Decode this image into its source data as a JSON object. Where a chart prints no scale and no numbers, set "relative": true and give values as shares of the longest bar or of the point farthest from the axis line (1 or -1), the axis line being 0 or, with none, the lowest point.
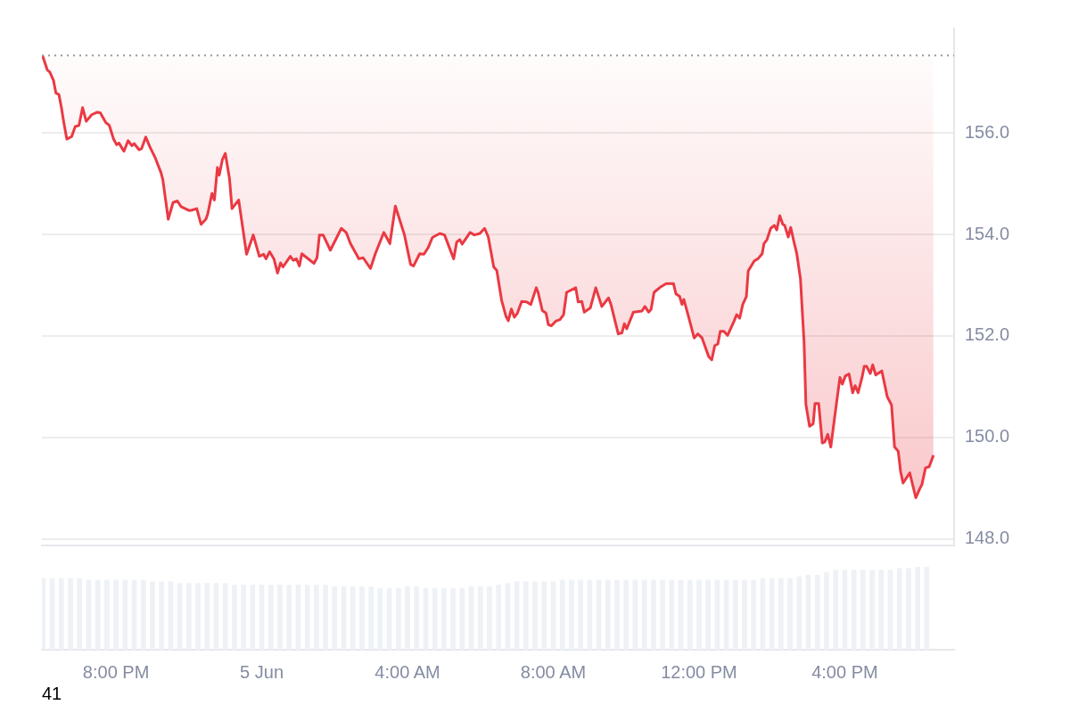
{
  "chart_data": [
    {
      "type": "line",
      "xlim": [
        "--06-04T17:58",
        "--06-05T19:00"
      ],
      "xticks": [
        {
          "value": "--06-04T20:00",
          "label": "8:00 PM"
        },
        {
          "value": "--06-05T00:00",
          "label": "5 Jun"
        },
        {
          "value": "--06-05T04:00",
          "label": "4:00 AM"
        },
        {
          "value": "--06-05T08:00",
          "label": "8:00 AM"
        },
        {
          "value": "--06-05T12:00",
          "label": "12:00 PM"
        },
        {
          "value": "--06-05T16:00",
          "label": "4:00 PM"
        }
      ],
      "ylim": [
        147.87,
        158.06
      ],
      "yticks": [
        {
          "value": 148,
          "label": "148.0"
        },
        {
          "value": 150,
          "label": "150.0"
        },
        {
          "value": 152,
          "label": "152.0"
        },
        {
          "value": 154,
          "label": "154.0"
        },
        {
          "value": 156,
          "label": "156.0"
        }
      ],
      "grid": "y",
      "tick_labels": "y",
      "marker": "none",
      "ref_lines": [
        {
          "axis": "y",
          "value": 157.53,
          "color": "#999999",
          "line_style": "dotted"
        }
      ],
      "series": [
        {
          "color": "#ea3943",
          "x": [
            "--06-04T17:59",
            "--06-04T18:07",
            "--06-04T18:11",
            "--06-04T18:17",
            "--06-04T18:21",
            "--06-04T18:26",
            "--06-04T18:30",
            "--06-04T18:34",
            "--06-04T18:39",
            "--06-04T18:47",
            "--06-04T18:53",
            "--06-04T18:59",
            "--06-04T19:05",
            "--06-04T19:11",
            "--06-04T19:20",
            "--06-04T19:29",
            "--06-04T19:34",
            "--06-04T19:43",
            "--06-04T19:49",
            "--06-04T19:56",
            "--06-04T20:01",
            "--06-04T20:05",
            "--06-04T20:13",
            "--06-04T20:20",
            "--06-04T20:26",
            "--06-04T20:30",
            "--06-04T20:38",
            "--06-04T20:42",
            "--06-04T20:49",
            "--06-04T20:56",
            "--06-04T21:05",
            "--06-04T21:14",
            "--06-04T21:17",
            "--06-04T21:26",
            "--06-04T21:34",
            "--06-04T21:41",
            "--06-04T21:47",
            "--06-04T21:54",
            "--06-04T22:01",
            "--06-04T22:05",
            "--06-04T22:13",
            "--06-04T22:20",
            "--06-04T22:28",
            "--06-04T22:31",
            "--06-04T22:38",
            "--06-04T22:42",
            "--06-04T22:47",
            "--06-04T22:50",
            "--06-04T22:55",
            "--06-04T23:00",
            "--06-04T23:07",
            "--06-04T23:11",
            "--06-04T23:22",
            "--06-04T23:35",
            "--06-04T23:46",
            "--06-04T23:56",
            "--06-05T00:03",
            "--06-05T00:07",
            "--06-05T00:13",
            "--06-05T00:20",
            "--06-05T00:26",
            "--06-05T00:31",
            "--06-05T00:35",
            "--06-05T00:47",
            "--06-05T00:52",
            "--06-05T00:57",
            "--06-05T01:02",
            "--06-05T01:06",
            "--06-05T01:26",
            "--06-05T01:31",
            "--06-05T01:35",
            "--06-05T01:41",
            "--06-05T01:53",
            "--06-05T02:11",
            "--06-05T02:19",
            "--06-05T02:26",
            "--06-05T02:40",
            "--06-05T02:47",
            "--06-05T02:59",
            "--06-05T03:07",
            "--06-05T03:21",
            "--06-05T03:31",
            "--06-05T03:40",
            "--06-05T03:55",
            "--06-05T04:05",
            "--06-05T04:10",
            "--06-05T04:20",
            "--06-05T04:27",
            "--06-05T04:34",
            "--06-05T04:41",
            "--06-05T04:53",
            "--06-05T05:01",
            "--06-05T05:16",
            "--06-05T05:21",
            "--06-05T05:26",
            "--06-05T05:30",
            "--06-05T05:43",
            "--06-05T05:50",
            "--06-05T05:59",
            "--06-05T06:07",
            "--06-05T06:13",
            "--06-05T06:22",
            "--06-05T06:27",
            "--06-05T06:35",
            "--06-05T06:42",
            "--06-05T06:46",
            "--06-05T06:51",
            "--06-05T06:56",
            "--06-05T07:01",
            "--06-05T07:08",
            "--06-05T07:16",
            "--06-05T07:23",
            "--06-05T07:32",
            "--06-05T07:35",
            "--06-05T07:42",
            "--06-05T07:48",
            "--06-05T07:52",
            "--06-05T07:57",
            "--06-05T08:04",
            "--06-05T08:11",
            "--06-05T08:17",
            "--06-05T08:22",
            "--06-05T08:37",
            "--06-05T08:41",
            "--06-05T08:47",
            "--06-05T08:51",
            "--06-05T09:01",
            "--06-05T09:10",
            "--06-05T09:20",
            "--06-05T09:31",
            "--06-05T09:35",
            "--06-05T09:47",
            "--06-05T09:53",
            "--06-05T09:57",
            "--06-05T10:01",
            "--06-05T10:12",
            "--06-05T10:26",
            "--06-05T10:31",
            "--06-05T10:37",
            "--06-05T10:41",
            "--06-05T10:46",
            "--06-05T10:56",
            "--06-05T11:06",
            "--06-05T11:18",
            "--06-05T11:22",
            "--06-05T11:28",
            "--06-05T11:32",
            "--06-05T11:35",
            "--06-05T11:43",
            "--06-05T11:52",
            "--06-05T11:58",
            "--06-05T12:05",
            "--06-05T12:16",
            "--06-05T12:21",
            "--06-05T12:26",
            "--06-05T12:31",
            "--06-05T12:35",
            "--06-05T12:41",
            "--06-05T12:47",
            "--06-05T12:58",
            "--06-05T13:02",
            "--06-05T13:07",
            "--06-05T13:12",
            "--06-05T13:18",
            "--06-05T13:21",
            "--06-05T13:31",
            "--06-05T13:37",
            "--06-05T13:44",
            "--06-05T13:47",
            "--06-05T13:52",
            "--06-05T13:58",
            "--06-05T14:04",
            "--06-05T14:08",
            "--06-05T14:13",
            "--06-05T14:18",
            "--06-05T14:21",
            "--06-05T14:27",
            "--06-05T14:31",
            "--06-05T14:36",
            "--06-05T14:41",
            "--06-05T14:47",
            "--06-05T14:53",
            "--06-05T14:56",
            "--06-05T15:02",
            "--06-05T15:08",
            "--06-05T15:11",
            "--06-05T15:17",
            "--06-05T15:23",
            "--06-05T15:27",
            "--06-05T15:32",
            "--06-05T15:37",
            "--06-05T15:45",
            "--06-05T15:52",
            "--06-05T15:56",
            "--06-05T16:01",
            "--06-05T16:07",
            "--06-05T16:13",
            "--06-05T16:17",
            "--06-05T16:22",
            "--06-05T16:29",
            "--06-05T16:32",
            "--06-05T16:36",
            "--06-05T16:42",
            "--06-05T16:46",
            "--06-05T16:51",
            "--06-05T17:01",
            "--06-05T17:10",
            "--06-05T17:17",
            "--06-05T17:22",
            "--06-05T17:28",
            "--06-05T17:32",
            "--06-05T17:36",
            "--06-05T17:47",
            "--06-05T17:57",
            "--06-05T18:04",
            "--06-05T18:07",
            "--06-05T18:13",
            "--06-05T18:19",
            "--06-05T18:26"
          ],
          "values": [
            157.53,
            157.24,
            157.2,
            157.04,
            156.79,
            156.76,
            156.51,
            156.21,
            155.88,
            155.93,
            156.13,
            156.15,
            156.5,
            156.23,
            156.36,
            156.41,
            156.4,
            156.21,
            156.15,
            155.88,
            155.77,
            155.8,
            155.64,
            155.85,
            155.75,
            155.79,
            155.67,
            155.69,
            155.92,
            155.72,
            155.5,
            155.22,
            155.09,
            154.3,
            154.63,
            154.66,
            154.55,
            154.51,
            154.47,
            154.48,
            154.51,
            154.2,
            154.3,
            154.4,
            154.81,
            154.68,
            155.32,
            155.17,
            155.47,
            155.6,
            155.09,
            154.51,
            154.68,
            153.61,
            153.99,
            153.57,
            153.61,
            153.52,
            153.66,
            153.52,
            153.24,
            153.44,
            153.36,
            153.57,
            153.49,
            153.52,
            153.38,
            153.62,
            153.43,
            153.54,
            153.99,
            153.99,
            153.69,
            154.12,
            154.04,
            153.82,
            153.52,
            153.54,
            153.33,
            153.62,
            154.04,
            153.82,
            154.56,
            153.99,
            153.41,
            153.38,
            153.62,
            153.61,
            153.74,
            153.94,
            154.02,
            153.99,
            153.52,
            153.85,
            153.9,
            153.81,
            154.04,
            153.99,
            154.02,
            154.12,
            153.95,
            153.36,
            153.29,
            152.7,
            152.39,
            152.3,
            152.53,
            152.37,
            152.45,
            152.68,
            152.67,
            152.62,
            152.95,
            152.86,
            152.5,
            152.45,
            152.22,
            152.2,
            152.29,
            152.32,
            152.42,
            152.86,
            152.95,
            152.67,
            152.68,
            152.47,
            152.55,
            152.95,
            152.58,
            152.75,
            152.62,
            152.04,
            152.06,
            152.24,
            152.14,
            152.47,
            152.49,
            152.58,
            152.47,
            152.52,
            152.86,
            152.96,
            153.03,
            153.03,
            152.83,
            152.78,
            152.62,
            152.72,
            152.37,
            151.96,
            152.04,
            151.96,
            151.59,
            151.53,
            151.81,
            151.84,
            152.09,
            152.09,
            152.01,
            152.3,
            152.42,
            152.35,
            152.62,
            152.78,
            153.28,
            153.48,
            153.52,
            153.62,
            153.82,
            153.9,
            154.12,
            154.18,
            154.09,
            154.37,
            154.2,
            154.18,
            153.95,
            154.14,
            153.87,
            153.62,
            153.13,
            151.87,
            150.65,
            150.22,
            150.27,
            150.67,
            150.67,
            149.89,
            149.91,
            150.06,
            149.81,
            150.55,
            151.18,
            151.05,
            151.21,
            151.25,
            150.88,
            151.02,
            150.88,
            151.21,
            151.4,
            151.4,
            151.26,
            151.43,
            151.23,
            151.31,
            150.8,
            150.64,
            149.81,
            149.73,
            149.32,
            149.1,
            149.3,
            148.81,
            149.0,
            149.07,
            149.4,
            149.42,
            149.65
          ]
        }
      ]
    },
    {
      "type": "bar",
      "relative": true,
      "xlim": [
        "--06-04T17:58",
        "--06-05T19:00"
      ],
      "xticks": [
        {
          "value": "--06-04T20:00",
          "label": "8:00 PM"
        },
        {
          "value": "--06-05T00:00",
          "label": "5 Jun"
        },
        {
          "value": "--06-05T04:00",
          "label": "4:00 AM"
        },
        {
          "value": "--06-05T08:00",
          "label": "8:00 AM"
        },
        {
          "value": "--06-05T12:00",
          "label": "12:00 PM"
        },
        {
          "value": "--06-05T16:00",
          "label": "4:00 PM"
        }
      ],
      "tick_labels": "x",
      "x": [
        "--06-04T18:00",
        "--06-04T18:15",
        "--06-04T18:30",
        "--06-04T18:45",
        "--06-04T19:00",
        "--06-04T19:15",
        "--06-04T19:30",
        "--06-04T19:45",
        "--06-04T20:00",
        "--06-04T20:15",
        "--06-04T20:30",
        "--06-04T20:45",
        "--06-04T21:00",
        "--06-04T21:15",
        "--06-04T21:30",
        "--06-04T21:45",
        "--06-04T22:00",
        "--06-04T22:15",
        "--06-04T22:30",
        "--06-04T22:45",
        "--06-04T23:00",
        "--06-04T23:15",
        "--06-04T23:30",
        "--06-04T23:45",
        "--06-05T00:00",
        "--06-05T00:15",
        "--06-05T00:30",
        "--06-05T00:45",
        "--06-05T01:00",
        "--06-05T01:15",
        "--06-05T01:30",
        "--06-05T01:45",
        "--06-05T02:00",
        "--06-05T02:15",
        "--06-05T02:30",
        "--06-05T02:45",
        "--06-05T03:00",
        "--06-05T03:15",
        "--06-05T03:30",
        "--06-05T03:45",
        "--06-05T04:00",
        "--06-05T04:15",
        "--06-05T04:30",
        "--06-05T04:45",
        "--06-05T05:00",
        "--06-05T05:15",
        "--06-05T05:30",
        "--06-05T05:45",
        "--06-05T06:00",
        "--06-05T06:15",
        "--06-05T06:30",
        "--06-05T06:45",
        "--06-05T07:00",
        "--06-05T07:15",
        "--06-05T07:30",
        "--06-05T07:45",
        "--06-05T08:00",
        "--06-05T08:15",
        "--06-05T08:30",
        "--06-05T08:45",
        "--06-05T09:00",
        "--06-05T09:15",
        "--06-05T09:30",
        "--06-05T09:45",
        "--06-05T10:00",
        "--06-05T10:15",
        "--06-05T10:30",
        "--06-05T10:45",
        "--06-05T11:00",
        "--06-05T11:15",
        "--06-05T11:30",
        "--06-05T11:45",
        "--06-05T12:00",
        "--06-05T12:15",
        "--06-05T12:30",
        "--06-05T12:45",
        "--06-05T13:00",
        "--06-05T13:15",
        "--06-05T13:30",
        "--06-05T13:45",
        "--06-05T14:00",
        "--06-05T14:15",
        "--06-05T14:30",
        "--06-05T14:45",
        "--06-05T15:00",
        "--06-05T15:15",
        "--06-05T15:30",
        "--06-05T15:45",
        "--06-05T16:00",
        "--06-05T16:15",
        "--06-05T16:30",
        "--06-05T16:45",
        "--06-05T17:00",
        "--06-05T17:15",
        "--06-05T17:30",
        "--06-05T17:45",
        "--06-05T18:00",
        "--06-05T18:15"
      ],
      "series": [
        {
          "color": "#eef1f5",
          "values": [
            0.86,
            0.86,
            0.86,
            0.86,
            0.86,
            0.84,
            0.84,
            0.84,
            0.84,
            0.84,
            0.84,
            0.84,
            0.82,
            0.82,
            0.82,
            0.8,
            0.8,
            0.8,
            0.8,
            0.8,
            0.8,
            0.78,
            0.78,
            0.78,
            0.78,
            0.78,
            0.78,
            0.78,
            0.78,
            0.78,
            0.78,
            0.78,
            0.76,
            0.76,
            0.76,
            0.76,
            0.76,
            0.74,
            0.74,
            0.74,
            0.76,
            0.76,
            0.74,
            0.74,
            0.74,
            0.74,
            0.74,
            0.76,
            0.76,
            0.76,
            0.78,
            0.8,
            0.82,
            0.82,
            0.82,
            0.82,
            0.82,
            0.84,
            0.84,
            0.84,
            0.84,
            0.84,
            0.84,
            0.84,
            0.84,
            0.84,
            0.84,
            0.84,
            0.84,
            0.84,
            0.84,
            0.84,
            0.84,
            0.84,
            0.84,
            0.84,
            0.84,
            0.84,
            0.84,
            0.86,
            0.86,
            0.86,
            0.86,
            0.88,
            0.9,
            0.9,
            0.93,
            0.96,
            0.96,
            0.96,
            0.96,
            0.96,
            0.96,
            0.96,
            0.98,
            0.98,
            1,
            1
          ]
        }
      ],
      "annotations": [
        "41"
      ]
    }
  ]
}
